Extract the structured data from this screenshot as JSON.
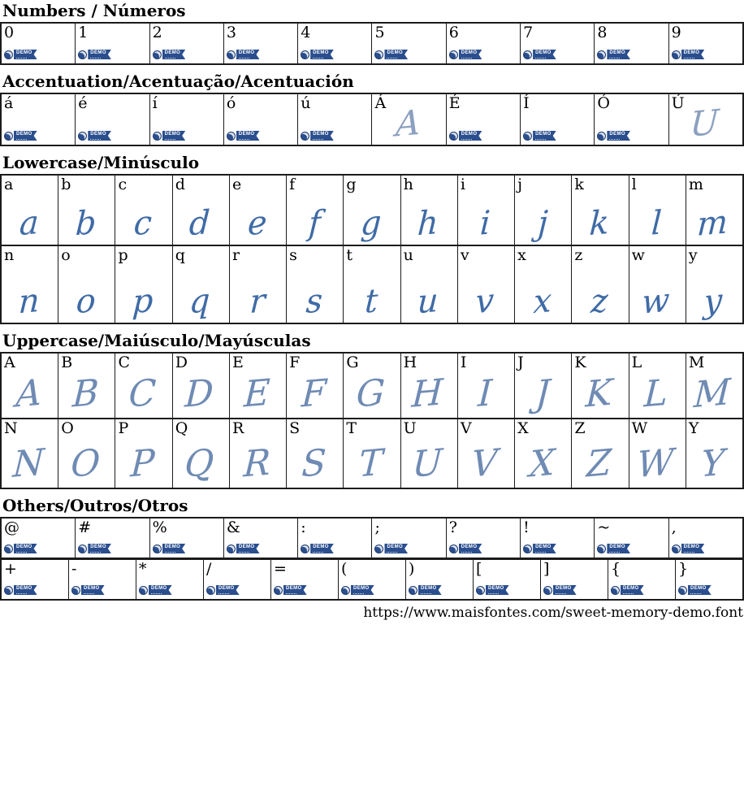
{
  "page": {
    "url_caption": "https://www.maisfontes.com/sweet-memory-demo.font",
    "badge_label": "DEMO",
    "glyph_color": "#3f6ba6",
    "badge_color": "#2a4e8e"
  },
  "sections": [
    {
      "id": "numbers",
      "title": "Numbers / Números",
      "rows": [
        {
          "cells": [
            {
              "ch": "0",
              "demo": true
            },
            {
              "ch": "1",
              "demo": true
            },
            {
              "ch": "2",
              "demo": true
            },
            {
              "ch": "3",
              "demo": true
            },
            {
              "ch": "4",
              "demo": true
            },
            {
              "ch": "5",
              "demo": true
            },
            {
              "ch": "6",
              "demo": true
            },
            {
              "ch": "7",
              "demo": true
            },
            {
              "ch": "8",
              "demo": true
            },
            {
              "ch": "9",
              "demo": true
            }
          ]
        }
      ]
    },
    {
      "id": "accentuation",
      "title": "Accentuation/Acentuação/Acentuación",
      "rows": [
        {
          "cells": [
            {
              "ch": "á",
              "demo": true
            },
            {
              "ch": "é",
              "demo": true
            },
            {
              "ch": "í",
              "demo": true
            },
            {
              "ch": "ó",
              "demo": true
            },
            {
              "ch": "ú",
              "demo": true
            },
            {
              "ch": "Á",
              "glyph": "A"
            },
            {
              "ch": "É",
              "demo": true
            },
            {
              "ch": "Í",
              "demo": true
            },
            {
              "ch": "Ó",
              "demo": true
            },
            {
              "ch": "Ú",
              "glyph": "U"
            }
          ]
        }
      ]
    },
    {
      "id": "lowercase",
      "title": "Lowercase/Minúsculo",
      "rows": [
        {
          "cells": [
            {
              "ch": "a",
              "glyph": "a"
            },
            {
              "ch": "b",
              "glyph": "b"
            },
            {
              "ch": "c",
              "glyph": "c"
            },
            {
              "ch": "d",
              "glyph": "d"
            },
            {
              "ch": "e",
              "glyph": "e"
            },
            {
              "ch": "f",
              "glyph": "f"
            },
            {
              "ch": "g",
              "glyph": "g"
            },
            {
              "ch": "h",
              "glyph": "h"
            },
            {
              "ch": "i",
              "glyph": "i"
            },
            {
              "ch": "j",
              "glyph": "j"
            },
            {
              "ch": "k",
              "glyph": "k"
            },
            {
              "ch": "l",
              "glyph": "l"
            },
            {
              "ch": "m",
              "glyph": "m"
            }
          ]
        },
        {
          "cells": [
            {
              "ch": "n",
              "glyph": "n"
            },
            {
              "ch": "o",
              "glyph": "o"
            },
            {
              "ch": "p",
              "glyph": "p"
            },
            {
              "ch": "q",
              "glyph": "q"
            },
            {
              "ch": "r",
              "glyph": "r"
            },
            {
              "ch": "s",
              "glyph": "s"
            },
            {
              "ch": "t",
              "glyph": "t"
            },
            {
              "ch": "u",
              "glyph": "u"
            },
            {
              "ch": "v",
              "glyph": "v"
            },
            {
              "ch": "x",
              "glyph": "x"
            },
            {
              "ch": "z",
              "glyph": "z"
            },
            {
              "ch": "w",
              "glyph": "w"
            },
            {
              "ch": "y",
              "glyph": "y"
            }
          ]
        }
      ]
    },
    {
      "id": "uppercase",
      "title": "Uppercase/Maiúsculo/Mayúsculas",
      "rows": [
        {
          "cells": [
            {
              "ch": "A",
              "glyph": "A"
            },
            {
              "ch": "B",
              "glyph": "B"
            },
            {
              "ch": "C",
              "glyph": "C"
            },
            {
              "ch": "D",
              "glyph": "D"
            },
            {
              "ch": "E",
              "glyph": "E"
            },
            {
              "ch": "F",
              "glyph": "F"
            },
            {
              "ch": "G",
              "glyph": "G"
            },
            {
              "ch": "H",
              "glyph": "H"
            },
            {
              "ch": "I",
              "glyph": "I"
            },
            {
              "ch": "J",
              "glyph": "J"
            },
            {
              "ch": "K",
              "glyph": "K"
            },
            {
              "ch": "L",
              "glyph": "L"
            },
            {
              "ch": "M",
              "glyph": "M"
            }
          ]
        },
        {
          "cells": [
            {
              "ch": "N",
              "glyph": "N"
            },
            {
              "ch": "O",
              "glyph": "O"
            },
            {
              "ch": "P",
              "glyph": "P"
            },
            {
              "ch": "Q",
              "glyph": "Q"
            },
            {
              "ch": "R",
              "glyph": "R"
            },
            {
              "ch": "S",
              "glyph": "S"
            },
            {
              "ch": "T",
              "glyph": "T"
            },
            {
              "ch": "U",
              "glyph": "U"
            },
            {
              "ch": "V",
              "glyph": "V"
            },
            {
              "ch": "X",
              "glyph": "X"
            },
            {
              "ch": "Z",
              "glyph": "Z"
            },
            {
              "ch": "W",
              "glyph": "W"
            },
            {
              "ch": "Y",
              "glyph": "Y"
            }
          ]
        }
      ]
    },
    {
      "id": "others",
      "title": "Others/Outros/Otros",
      "rows": [
        {
          "cells": [
            {
              "ch": "@",
              "demo": true
            },
            {
              "ch": "#",
              "demo": true
            },
            {
              "ch": "%",
              "demo": true
            },
            {
              "ch": "&",
              "demo": true
            },
            {
              "ch": ":",
              "demo": true
            },
            {
              "ch": ";",
              "demo": true
            },
            {
              "ch": "?",
              "demo": true
            },
            {
              "ch": "!",
              "demo": true
            },
            {
              "ch": "~",
              "demo": true
            },
            {
              "ch": ",",
              "demo": true
            }
          ]
        },
        {
          "cells": [
            {
              "ch": "+",
              "demo": true
            },
            {
              "ch": "-",
              "demo": true
            },
            {
              "ch": "*",
              "demo": true
            },
            {
              "ch": "/",
              "demo": true
            },
            {
              "ch": "=",
              "demo": true
            },
            {
              "ch": "(",
              "demo": true
            },
            {
              "ch": ")",
              "demo": true
            },
            {
              "ch": "[",
              "demo": true
            },
            {
              "ch": "]",
              "demo": true
            },
            {
              "ch": "{",
              "demo": true
            },
            {
              "ch": "}",
              "demo": true
            }
          ]
        }
      ]
    }
  ]
}
